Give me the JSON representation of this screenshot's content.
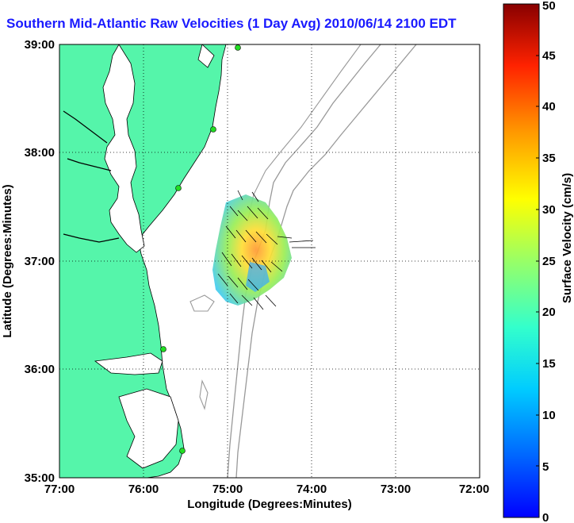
{
  "title": "Southern Mid-Atlantic Raw Velocities (1 Day Avg) 2010/06/14 2100 EDT",
  "map": {
    "x_axis_label": "Longitude (Degrees:Minutes)",
    "y_axis_label": "Latitude (Degrees:Minutes)",
    "x_ticks": [
      "77:00",
      "76:00",
      "75:00",
      "74:00",
      "73:00",
      "72:00"
    ],
    "y_ticks": [
      "39:00",
      "38:00",
      "37:00",
      "36:00",
      "35:00"
    ],
    "lon_range_west": [
      77,
      72
    ],
    "lat_range": [
      35,
      39
    ],
    "land_color": "#55f5aa",
    "water_color": "#ffffff",
    "bathymetry_color": "#999999",
    "station_color": "#22dd22",
    "grid": "dotted"
  },
  "colorbar": {
    "label": "Surface Velocity (cm/s)",
    "min": 0,
    "max": 50,
    "ticks": [
      "0",
      "5",
      "10",
      "15",
      "20",
      "25",
      "30",
      "35",
      "40",
      "45",
      "50"
    ],
    "colormap": "jet"
  }
}
